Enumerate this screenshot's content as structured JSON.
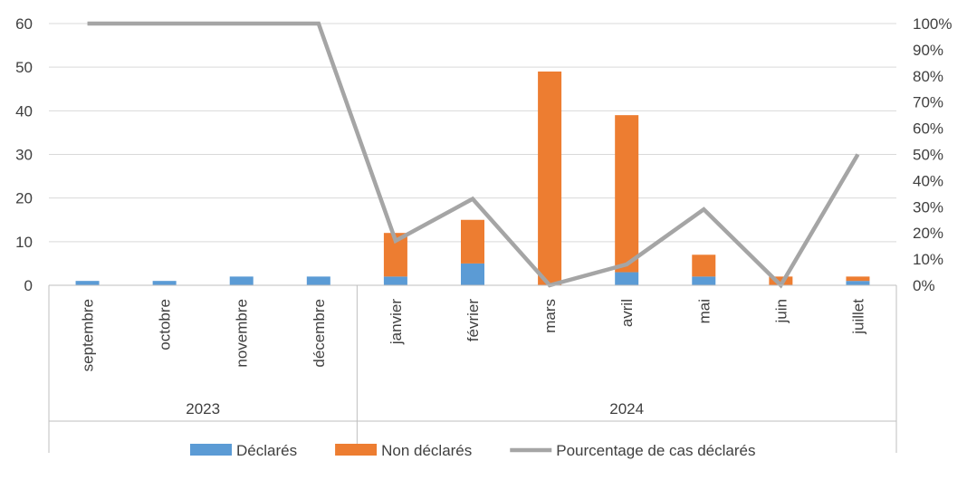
{
  "chart_data": {
    "type": "bar",
    "stacked": true,
    "categories": [
      "septembre",
      "octobre",
      "novembre",
      "décembre",
      "janvier",
      "février",
      "mars",
      "avril",
      "mai",
      "juin",
      "juillet"
    ],
    "groups": [
      {
        "label": "2023",
        "categories": [
          "septembre",
          "octobre",
          "novembre",
          "décembre"
        ]
      },
      {
        "label": "2024",
        "categories": [
          "janvier",
          "février",
          "mars",
          "avril",
          "mai",
          "juin",
          "juillet"
        ]
      }
    ],
    "series": [
      {
        "name": "Déclarés",
        "type": "bar",
        "axis": "left",
        "color": "#5B9BD5",
        "values": [
          1,
          1,
          2,
          2,
          2,
          5,
          0,
          3,
          2,
          0,
          1
        ]
      },
      {
        "name": "Non déclarés",
        "type": "bar",
        "axis": "left",
        "color": "#ED7D31",
        "values": [
          0,
          0,
          0,
          0,
          10,
          10,
          49,
          36,
          5,
          2,
          1
        ]
      },
      {
        "name": "Pourcentage de cas déclarés",
        "type": "line",
        "axis": "right",
        "color": "#A5A5A5",
        "values": [
          100,
          100,
          100,
          100,
          17,
          33,
          0,
          8,
          29,
          0,
          50
        ]
      }
    ],
    "y_left": {
      "min": 0,
      "max": 60,
      "step": 10,
      "ticks": [
        "0",
        "10",
        "20",
        "30",
        "40",
        "50",
        "60"
      ]
    },
    "y_right": {
      "min": 0,
      "max": 100,
      "step": 10,
      "ticks": [
        "0%",
        "10%",
        "20%",
        "30%",
        "40%",
        "50%",
        "60%",
        "70%",
        "80%",
        "90%",
        "100%"
      ]
    },
    "grid": true,
    "legend": "bottom"
  }
}
